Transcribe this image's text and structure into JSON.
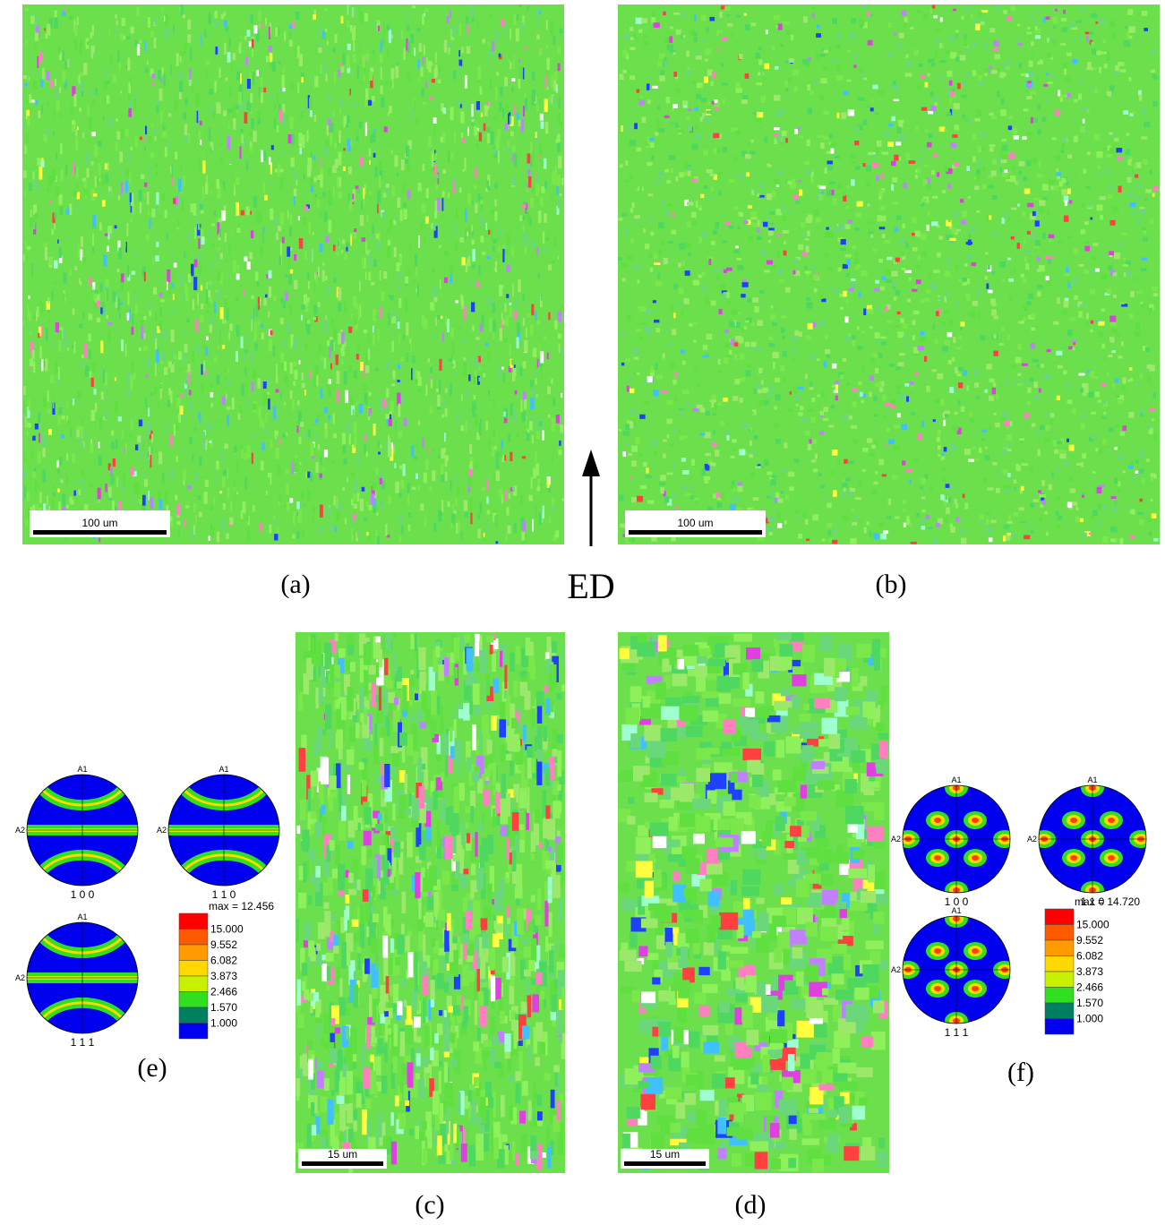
{
  "panels": {
    "a": {
      "label": "(a)",
      "scale_bar": "100 um"
    },
    "b": {
      "label": "(b)",
      "scale_bar": "100 um"
    },
    "c": {
      "label": "(c)",
      "scale_bar": "15 um"
    },
    "d": {
      "label": "(d)",
      "scale_bar": "15 um"
    }
  },
  "direction": "ED",
  "pole_figures": [
    {
      "panel_label": "(e)",
      "figures": [
        {
          "label": "1 0 0",
          "axis_top": "A1",
          "axis_left": "A2"
        },
        {
          "label": "1 1 0",
          "axis_top": "A1",
          "axis_left": "A2"
        },
        {
          "label": "1 1 1",
          "axis_top": "A1",
          "axis_left": "A2"
        }
      ],
      "legend": {
        "max": "max = 12.456",
        "levels": [
          "15.000",
          "9.552",
          "6.082",
          "3.873",
          "2.466",
          "1.570",
          "1.000"
        ]
      }
    },
    {
      "panel_label": "(f)",
      "figures": [
        {
          "label": "1 0 0",
          "axis_top": "A1",
          "axis_left": "A2"
        },
        {
          "label": "1 1 0",
          "axis_top": "A1",
          "axis_left": "A2"
        },
        {
          "label": "1 1 1",
          "axis_top": "A1",
          "axis_left": "A2"
        }
      ],
      "legend": {
        "max": "max = 14.720",
        "levels": [
          "15.000",
          "9.552",
          "6.082",
          "3.873",
          "2.466",
          "1.570",
          "1.000"
        ]
      }
    }
  ]
}
